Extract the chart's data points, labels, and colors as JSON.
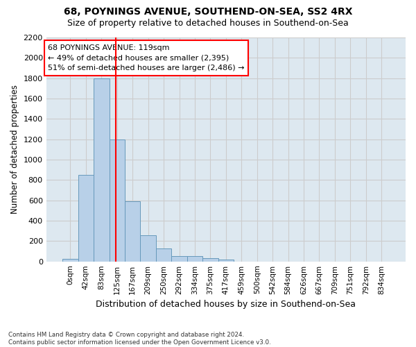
{
  "title_line1": "68, POYNINGS AVENUE, SOUTHEND-ON-SEA, SS2 4RX",
  "title_line2": "Size of property relative to detached houses in Southend-on-Sea",
  "xlabel": "Distribution of detached houses by size in Southend-on-Sea",
  "ylabel": "Number of detached properties",
  "footnote": "Contains HM Land Registry data © Crown copyright and database right 2024.\nContains public sector information licensed under the Open Government Licence v3.0.",
  "bar_values": [
    25,
    850,
    1800,
    1200,
    590,
    260,
    130,
    50,
    50,
    35,
    20,
    0,
    0,
    0,
    0,
    0,
    0,
    0,
    0,
    0,
    0
  ],
  "bar_labels": [
    "0sqm",
    "42sqm",
    "83sqm",
    "125sqm",
    "167sqm",
    "209sqm",
    "250sqm",
    "292sqm",
    "334sqm",
    "375sqm",
    "417sqm",
    "459sqm",
    "500sqm",
    "542sqm",
    "584sqm",
    "626sqm",
    "667sqm",
    "709sqm",
    "751sqm",
    "792sqm",
    "834sqm"
  ],
  "bar_color": "#b8d0e8",
  "bar_edgecolor": "#6699bb",
  "grid_color": "#cccccc",
  "background_color": "#dde8f0",
  "vline_x": 2.9,
  "vline_color": "red",
  "annotation_text": "68 POYNINGS AVENUE: 119sqm\n← 49% of detached houses are smaller (2,395)\n51% of semi-detached houses are larger (2,486) →",
  "annotation_box_color": "white",
  "annotation_box_edgecolor": "red",
  "ylim": [
    0,
    2200
  ],
  "yticks": [
    0,
    200,
    400,
    600,
    800,
    1000,
    1200,
    1400,
    1600,
    1800,
    2000,
    2200
  ]
}
